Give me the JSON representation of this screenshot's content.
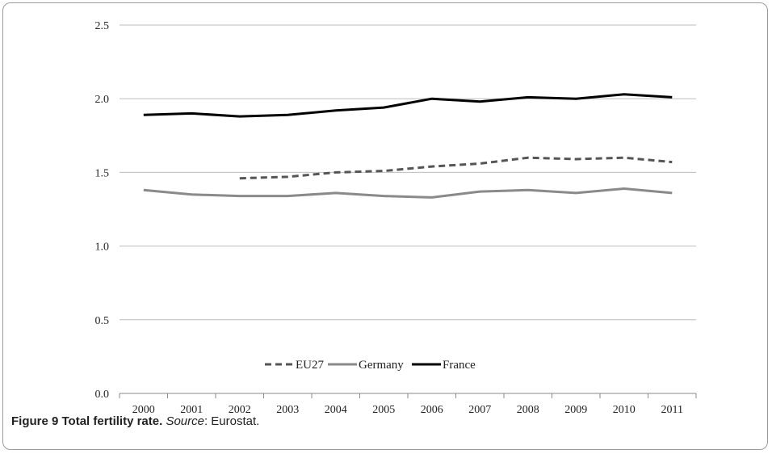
{
  "caption": {
    "label": "Figure 9 Total fertility rate.",
    "source_label": "Source",
    "source_value": ": Eurostat."
  },
  "chart_data": {
    "type": "line",
    "title": "",
    "xlabel": "",
    "ylabel": "",
    "categories": [
      "2000",
      "2001",
      "2002",
      "2003",
      "2004",
      "2005",
      "2006",
      "2007",
      "2008",
      "2009",
      "2010",
      "2011"
    ],
    "ylim": [
      0,
      2.5
    ],
    "yticks": [
      "0.0",
      "0.5",
      "1.0",
      "1.5",
      "2.0",
      "2.5"
    ],
    "grid": true,
    "legend_position": "bottom",
    "series": [
      {
        "name": "EU27",
        "color": "#555555",
        "dash": true,
        "values": [
          null,
          null,
          1.46,
          1.47,
          1.5,
          1.51,
          1.54,
          1.56,
          1.6,
          1.59,
          1.6,
          1.57
        ]
      },
      {
        "name": "Germany",
        "color": "#8a8a8a",
        "dash": false,
        "values": [
          1.38,
          1.35,
          1.34,
          1.34,
          1.36,
          1.34,
          1.33,
          1.37,
          1.38,
          1.36,
          1.39,
          1.36
        ]
      },
      {
        "name": "France",
        "color": "#000000",
        "dash": false,
        "values": [
          1.89,
          1.9,
          1.88,
          1.89,
          1.92,
          1.94,
          2.0,
          1.98,
          2.01,
          2.0,
          2.03,
          2.01
        ]
      }
    ]
  }
}
